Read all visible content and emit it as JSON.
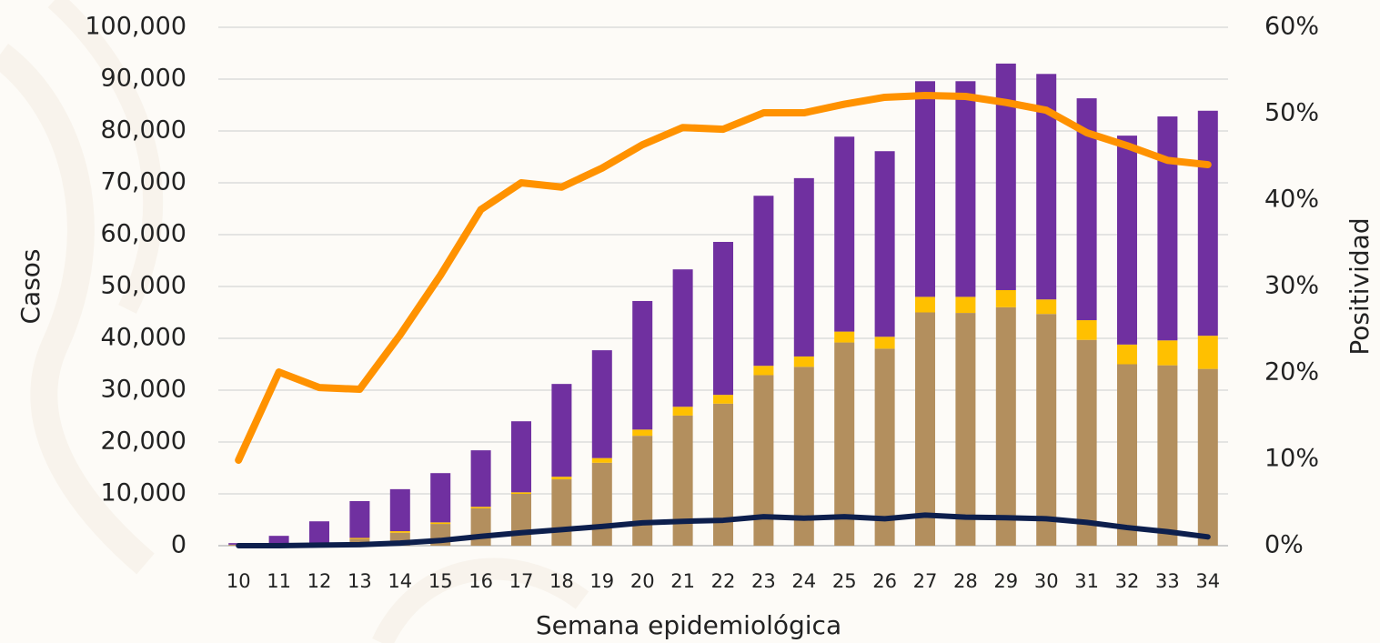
{
  "chart_data": {
    "type": "bar",
    "stacked": true,
    "x_label": "Semana epidemiológica",
    "y_label": "Casos",
    "y2_label": "Positividad",
    "categories": [
      "10",
      "11",
      "12",
      "13",
      "14",
      "15",
      "16",
      "17",
      "18",
      "19",
      "20",
      "21",
      "22",
      "23",
      "24",
      "25",
      "26",
      "27",
      "28",
      "29",
      "30",
      "31",
      "32",
      "33",
      "34"
    ],
    "series": [
      {
        "type": "bar",
        "color": "#b38f5e",
        "values": [
          200,
          300,
          500,
          1300,
          2500,
          4200,
          7200,
          10000,
          12800,
          16000,
          21200,
          25100,
          27400,
          32900,
          34500,
          39200,
          38000,
          45000,
          44900,
          46000,
          44700,
          39700,
          35000,
          34800,
          34100
        ]
      },
      {
        "type": "bar",
        "color": "#ffc000",
        "values": [
          0,
          0,
          100,
          200,
          300,
          300,
          300,
          300,
          500,
          900,
          1200,
          1700,
          1700,
          1800,
          2000,
          2100,
          2300,
          3000,
          3100,
          3300,
          2800,
          3800,
          3800,
          4800,
          6400
        ]
      },
      {
        "type": "bar",
        "color": "#7030a0",
        "values": [
          300,
          1600,
          4100,
          7100,
          8100,
          9500,
          10900,
          13700,
          17900,
          20800,
          24800,
          26500,
          29500,
          32800,
          34400,
          37600,
          35800,
          41600,
          41600,
          43700,
          43500,
          42800,
          40300,
          43200,
          43400
        ]
      },
      {
        "type": "line",
        "axis": "y2",
        "color": "#ff9200",
        "values": [
          9.9,
          20.1,
          18.3,
          18.1,
          24.4,
          31.3,
          38.9,
          42.0,
          41.5,
          43.7,
          46.4,
          48.4,
          48.2,
          50.1,
          50.1,
          51.1,
          51.9,
          52.1,
          52.0,
          51.3,
          50.4,
          47.8,
          46.3,
          44.6,
          44.1
        ]
      },
      {
        "type": "line",
        "color": "#0d1f4d",
        "values": [
          0,
          0,
          100,
          200,
          500,
          1000,
          1800,
          2500,
          3100,
          3700,
          4400,
          4700,
          4900,
          5600,
          5300,
          5600,
          5200,
          5900,
          5500,
          5400,
          5200,
          4500,
          3500,
          2700,
          1700
        ]
      }
    ],
    "ylim": [
      0,
      100000
    ],
    "yticks": [
      0,
      {
        "value": 10000,
        "label": "10,000"
      },
      {
        "value": 20000,
        "label": "20,000"
      },
      {
        "value": 30000,
        "label": "30,000"
      },
      {
        "value": 40000,
        "label": "40,000"
      },
      {
        "value": 50000,
        "label": "50,000"
      },
      {
        "value": 60000,
        "label": "60,000"
      },
      {
        "value": 70000,
        "label": "70,000"
      },
      {
        "value": 80000,
        "label": "80,000"
      },
      {
        "value": 90000,
        "label": "90,000"
      },
      {
        "value": 100000,
        "label": "100,000"
      }
    ],
    "y2lim": [
      0,
      60
    ],
    "y2ticks": [
      {
        "value": 0,
        "label": "0%"
      },
      {
        "value": 10,
        "label": "10%"
      },
      {
        "value": 20,
        "label": "20%"
      },
      {
        "value": 30,
        "label": "30%"
      },
      {
        "value": 40,
        "label": "40%"
      },
      {
        "value": 50,
        "label": "50%"
      },
      {
        "value": 60,
        "label": "60%"
      }
    ],
    "grid": true
  }
}
